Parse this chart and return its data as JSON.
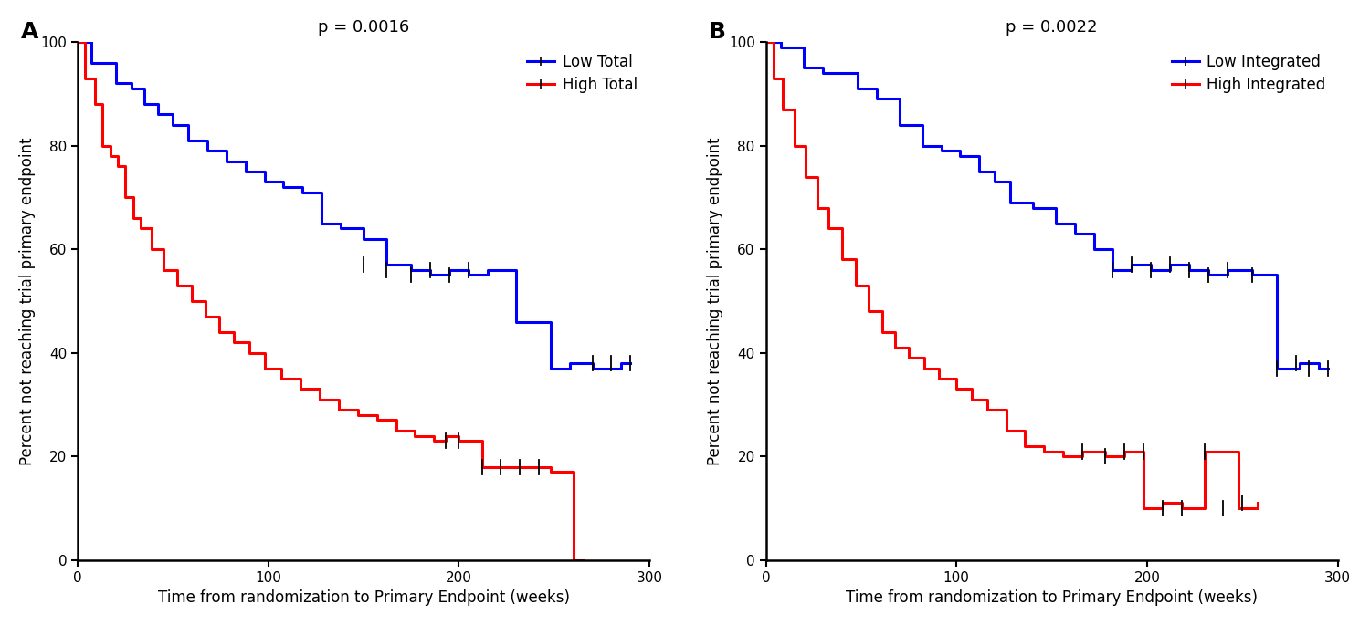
{
  "panel_A": {
    "title": "p = 0.0016",
    "blue_label": "Low Total",
    "red_label": "High Total",
    "blue_x": [
      0,
      7,
      20,
      28,
      35,
      42,
      50,
      58,
      68,
      78,
      88,
      98,
      108,
      118,
      128,
      138,
      150,
      162,
      175,
      185,
      195,
      205,
      215,
      230,
      248,
      258,
      270,
      285
    ],
    "blue_y": [
      100,
      96,
      92,
      91,
      88,
      86,
      84,
      81,
      79,
      77,
      75,
      73,
      72,
      71,
      65,
      64,
      62,
      57,
      56,
      55,
      56,
      55,
      56,
      46,
      37,
      38,
      37,
      38
    ],
    "blue_end": 290,
    "red_x": [
      0,
      4,
      9,
      13,
      17,
      21,
      25,
      29,
      33,
      39,
      45,
      52,
      60,
      67,
      74,
      82,
      90,
      98,
      107,
      117,
      127,
      137,
      147,
      157,
      167,
      177,
      187,
      193,
      200,
      212,
      248,
      260
    ],
    "red_y": [
      100,
      93,
      88,
      80,
      78,
      76,
      70,
      66,
      64,
      60,
      56,
      53,
      50,
      47,
      44,
      42,
      40,
      37,
      35,
      33,
      31,
      29,
      28,
      27,
      25,
      24,
      23,
      24,
      23,
      18,
      17,
      0
    ],
    "red_end": 265,
    "censoring_blue_x": [
      150,
      162,
      175,
      185,
      195,
      205,
      270,
      280,
      290
    ],
    "censoring_blue_y": [
      57,
      56,
      55,
      56,
      55,
      56,
      38,
      38,
      38
    ],
    "censoring_red_x": [
      193,
      200,
      212,
      222,
      232,
      242
    ],
    "censoring_red_y": [
      23,
      23,
      18,
      18,
      18,
      18
    ]
  },
  "panel_B": {
    "title": "p = 0.0022",
    "blue_label": "Low Integrated",
    "red_label": "High Integrated",
    "blue_x": [
      0,
      8,
      20,
      30,
      48,
      58,
      70,
      82,
      92,
      102,
      112,
      120,
      128,
      140,
      152,
      162,
      172,
      182,
      192,
      202,
      212,
      222,
      232,
      242,
      255,
      268,
      280,
      290
    ],
    "blue_y": [
      100,
      99,
      95,
      94,
      91,
      89,
      84,
      80,
      79,
      78,
      75,
      73,
      69,
      68,
      65,
      63,
      60,
      56,
      57,
      56,
      57,
      56,
      55,
      56,
      55,
      37,
      38,
      37
    ],
    "blue_end": 295,
    "red_x": [
      0,
      4,
      9,
      15,
      21,
      27,
      33,
      40,
      47,
      54,
      61,
      68,
      75,
      83,
      91,
      100,
      108,
      116,
      126,
      136,
      146,
      156,
      166,
      178,
      188,
      198,
      208,
      218,
      230,
      248,
      258
    ],
    "red_y": [
      100,
      93,
      87,
      80,
      74,
      68,
      64,
      58,
      53,
      48,
      44,
      41,
      39,
      37,
      35,
      33,
      31,
      29,
      25,
      22,
      21,
      20,
      21,
      20,
      21,
      10,
      11,
      10,
      21,
      10,
      11
    ],
    "red_end": 258,
    "censoring_blue_x": [
      182,
      192,
      202,
      212,
      222,
      232,
      242,
      255,
      268,
      278,
      285,
      295
    ],
    "censoring_blue_y": [
      56,
      57,
      56,
      57,
      56,
      55,
      56,
      55,
      37,
      38,
      37,
      37
    ],
    "censoring_red_x": [
      166,
      178,
      188,
      198,
      208,
      218,
      230,
      240,
      250
    ],
    "censoring_red_y": [
      21,
      20,
      21,
      21,
      10,
      10,
      21,
      10,
      11
    ]
  },
  "xlabel": "Time from randomization to Primary Endpoint (weeks)",
  "ylabel": "Percent not reaching trial primary endpoint",
  "xlim": [
    0,
    300
  ],
  "ylim": [
    0,
    100
  ],
  "xticks": [
    0,
    100,
    200,
    300
  ],
  "yticks": [
    0,
    20,
    40,
    60,
    80,
    100
  ],
  "blue_color": "#0000FF",
  "red_color": "#FF0000",
  "line_width": 2.2,
  "font_size_label": 12,
  "font_size_title": 13,
  "font_size_panel": 18,
  "font_size_legend": 12,
  "font_size_tick": 11,
  "background_color": "#FFFFFF"
}
